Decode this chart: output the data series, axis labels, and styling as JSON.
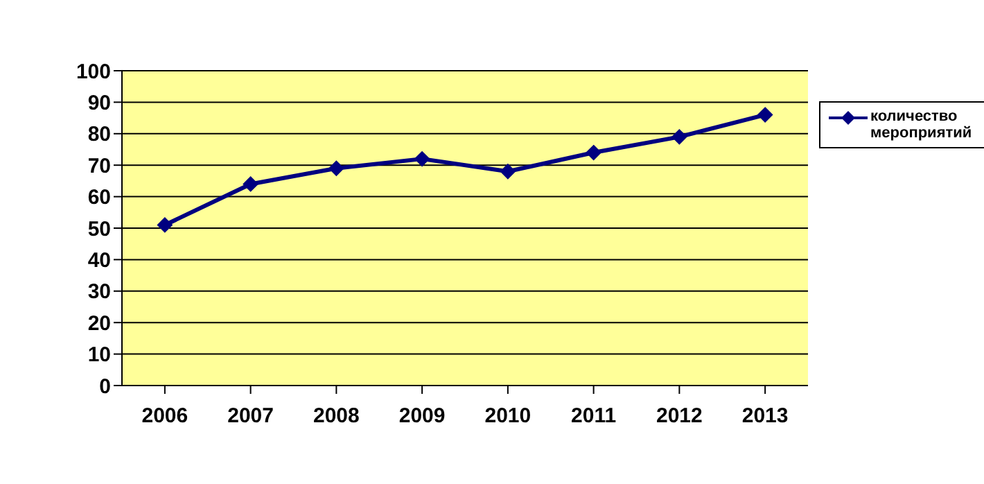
{
  "chart_data": {
    "type": "line",
    "categories": [
      "2006",
      "2007",
      "2008",
      "2009",
      "2010",
      "2011",
      "2012",
      "2013"
    ],
    "series": [
      {
        "name": "количество мероприятий",
        "color": "#000080",
        "values": [
          51,
          64,
          69,
          72,
          68,
          74,
          79,
          86
        ]
      }
    ],
    "ylim": [
      0,
      100
    ],
    "yticks": [
      0,
      10,
      20,
      30,
      40,
      50,
      60,
      70,
      80,
      90,
      100
    ],
    "grid": "y",
    "legend": "right",
    "marker": "diamond",
    "line_style": "solid"
  }
}
